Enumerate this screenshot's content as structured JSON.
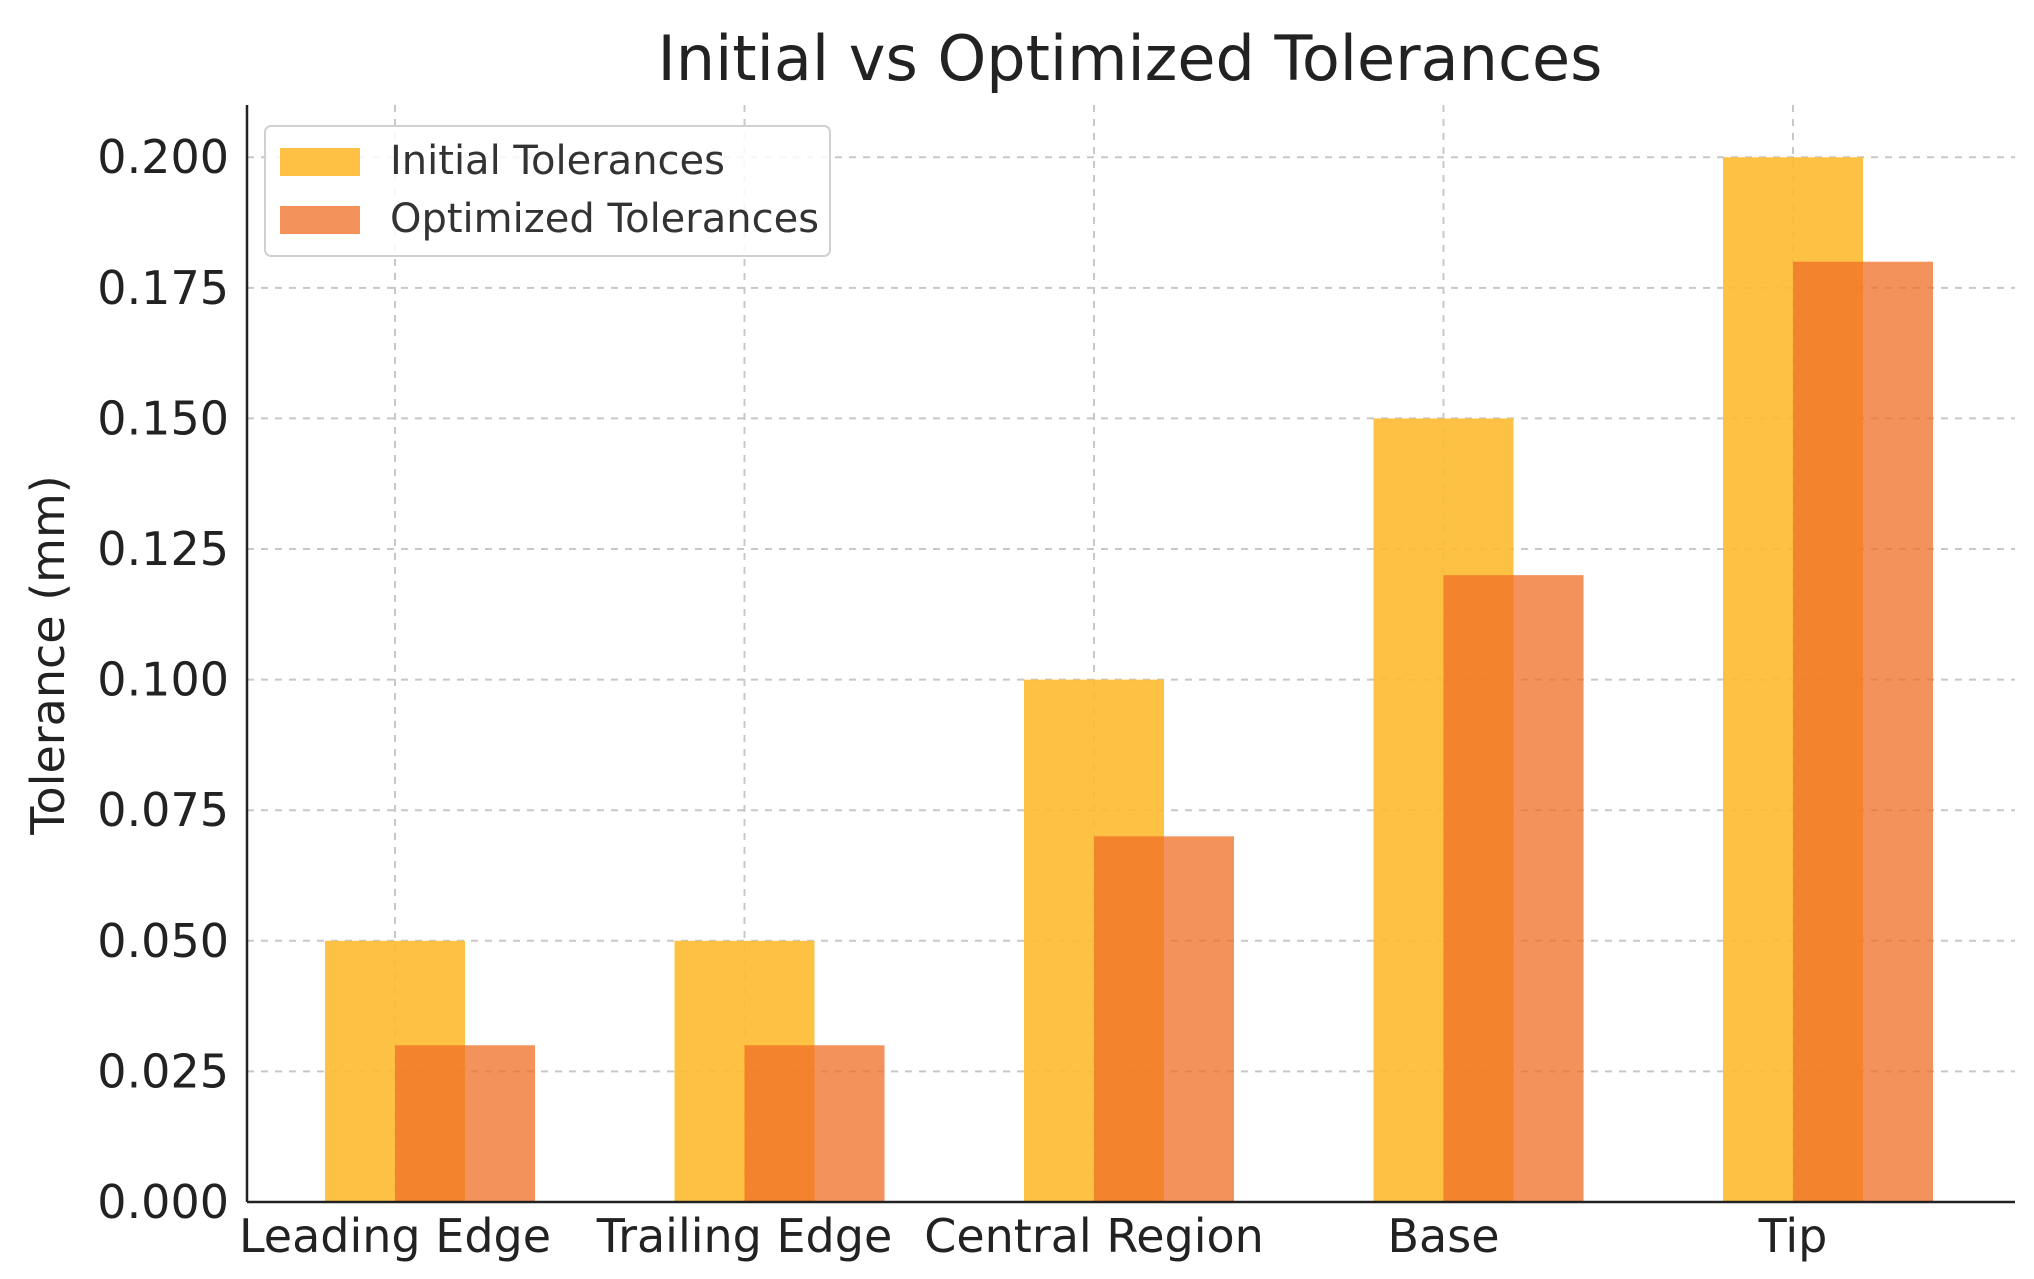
{
  "chart_data": {
    "type": "bar",
    "title": "Initial vs Optimized Tolerances",
    "xlabel": "",
    "ylabel": "Tolerance (mm)",
    "categories": [
      "Leading Edge",
      "Trailing Edge",
      "Central Region",
      "Base",
      "Tip"
    ],
    "series": [
      {
        "name": "Initial Tolerances",
        "values": [
          0.05,
          0.05,
          0.1,
          0.15,
          0.2
        ],
        "color": "#FDBB2F",
        "opacity": 0.9
      },
      {
        "name": "Optimized Tolerances",
        "values": [
          0.03,
          0.03,
          0.07,
          0.12,
          0.18
        ],
        "color": "#F06E26",
        "opacity": 0.75
      }
    ],
    "ylim": [
      0,
      0.21
    ],
    "yticks": [
      "0.000",
      "0.025",
      "0.050",
      "0.075",
      "0.100",
      "0.125",
      "0.150",
      "0.175",
      "0.200"
    ],
    "grid": true,
    "legend_position": "top-left"
  }
}
